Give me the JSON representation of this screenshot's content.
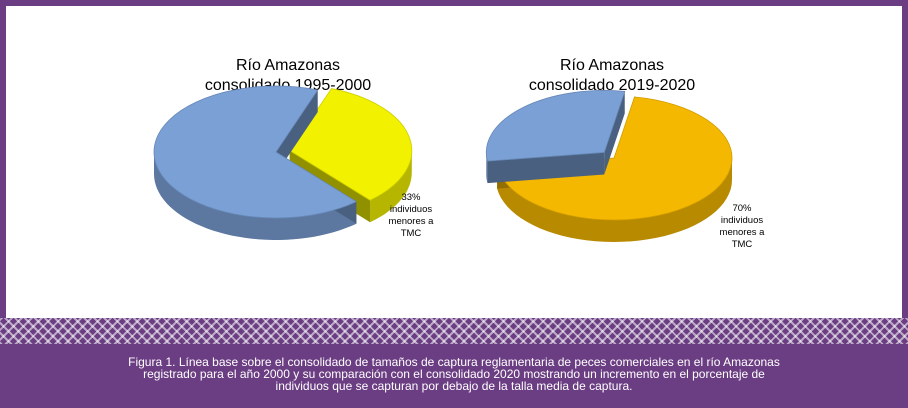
{
  "chart_data": [
    {
      "type": "pie",
      "title": "Río Amazonas\nconsolidado 1995-2000",
      "slices": [
        {
          "name": "individuos menores a TMC",
          "value": 33,
          "color": "#f2f200"
        },
        {
          "name": "",
          "value": 67,
          "color": "#7aa0d6"
        }
      ],
      "annotation": "33%\nindividuos\nmenores a\nTMC"
    },
    {
      "type": "pie",
      "title": "Río Amazonas\nconsolidado 2019-2020",
      "slices": [
        {
          "name": "individuos menores a TMC",
          "value": 70,
          "color": "#f5b800"
        },
        {
          "name": "",
          "value": 30,
          "color": "#7aa0d6"
        }
      ],
      "annotation": "70%\nindividuos\nmenores a\nTMC"
    }
  ],
  "caption": "Figura 1. Línea base sobre el consolidado de tamaños de captura reglamentaria de peces comerciales en el río Amazonas registrado para el año 2000 y su comparación con el consolidado 2020 mostrando un incremento en el porcentaje de individuos que se capturan por debajo de la talla media de captura."
}
